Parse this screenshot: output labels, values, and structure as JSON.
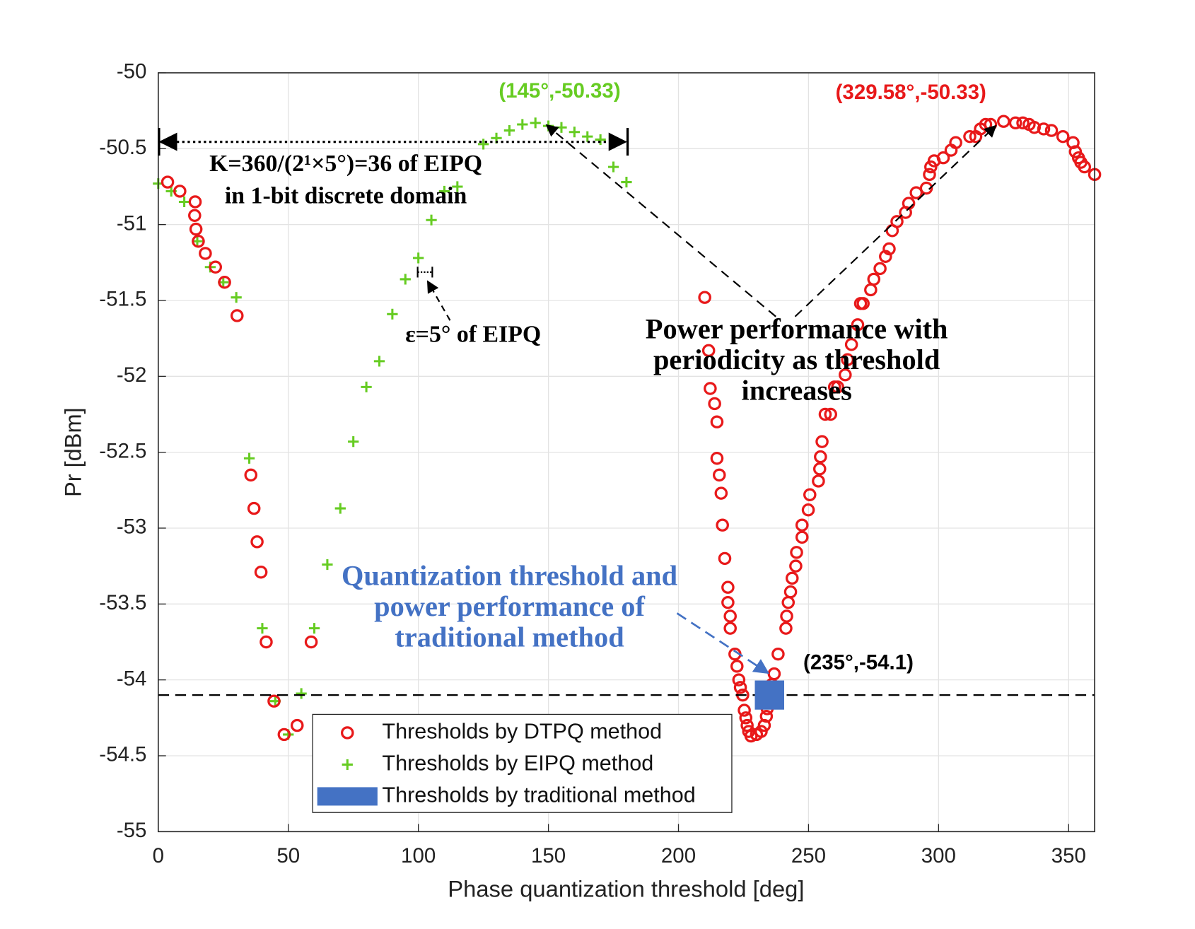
{
  "chart_data": {
    "type": "scatter",
    "xlabel": "Phase quantization threshold [deg]",
    "ylabel": "Pr [dBm]",
    "xlim": [
      0,
      360
    ],
    "ylim": [
      -55,
      -50
    ],
    "xticks": [
      0,
      50,
      100,
      150,
      200,
      250,
      300,
      350
    ],
    "yticks": [
      -55,
      -54.5,
      -54,
      -53.5,
      -53,
      -52.5,
      -52,
      -51.5,
      -51,
      -50.5,
      -50
    ],
    "grid": true,
    "legend": "lower center",
    "series": [
      {
        "name": "Thresholds by DTPQ method",
        "color": "#e8191a",
        "marker": "circle",
        "x": [
          3.6,
          8.3,
          14.2,
          14,
          14.5,
          15.4,
          18.1,
          22,
          25.5,
          30.3,
          35.6,
          36.8,
          38,
          39.5,
          41.5,
          44.5,
          48.4,
          53.4,
          58.8,
          210.1,
          211.6,
          212.2,
          213.9,
          214.8,
          214.8,
          215.7,
          216.4,
          216.9,
          217.8,
          219,
          219,
          219.9,
          219.9,
          221.7,
          222.5,
          223.2,
          223.8,
          224.7,
          225.3,
          225.9,
          226.4,
          227,
          227.9,
          230,
          231.8,
          233,
          233.8,
          234.1,
          235.9,
          236.8,
          238.3,
          241.3,
          241.6,
          242.2,
          243.1,
          243.7,
          245.1,
          245.4,
          247.5,
          247.5,
          249.9,
          250.5,
          253.8,
          254.3,
          254.6,
          255.2,
          256.4,
          258.5,
          260,
          261.2,
          264.1,
          265,
          266.5,
          268.9,
          270,
          271,
          273.9,
          275.1,
          277.5,
          279.6,
          281,
          282.2,
          284,
          287.3,
          288.5,
          291.4,
          295.3,
          296.5,
          297,
          298.3,
          301.8,
          304.8,
          306.6,
          312,
          314.3,
          316.1,
          318.1,
          320,
          325,
          329.58,
          332.4,
          334.8,
          336.8,
          340.4,
          343.4,
          347.8,
          351.7,
          352.6,
          353.8,
          354.7,
          356.1,
          360
        ],
        "values": [
          -50.72,
          -50.78,
          -50.85,
          -50.94,
          -51.03,
          -51.11,
          -51.19,
          -51.28,
          -51.38,
          -51.6,
          -52.65,
          -52.87,
          -53.09,
          -53.29,
          -53.75,
          -54.14,
          -54.36,
          -54.3,
          -53.75,
          -51.48,
          -51.83,
          -52.08,
          -52.18,
          -52.3,
          -52.54,
          -52.65,
          -52.77,
          -52.98,
          -53.2,
          -53.39,
          -53.49,
          -53.58,
          -53.66,
          -53.83,
          -53.91,
          -54,
          -54.05,
          -54.1,
          -54.2,
          -54.25,
          -54.3,
          -54.34,
          -54.37,
          -54.36,
          -54.34,
          -54.3,
          -54.24,
          -54.19,
          -54.03,
          -53.96,
          -53.83,
          -53.66,
          -53.58,
          -53.49,
          -53.42,
          -53.33,
          -53.25,
          -53.16,
          -53.06,
          -52.98,
          -52.88,
          -52.78,
          -52.69,
          -52.61,
          -52.53,
          -52.43,
          -52.25,
          -52.25,
          -52.07,
          -52.07,
          -51.99,
          -51.89,
          -51.79,
          -51.66,
          -51.52,
          -51.52,
          -51.43,
          -51.36,
          -51.29,
          -51.21,
          -51.16,
          -51.04,
          -50.98,
          -50.92,
          -50.86,
          -50.79,
          -50.76,
          -50.67,
          -50.62,
          -50.58,
          -50.56,
          -50.51,
          -50.46,
          -50.42,
          -50.42,
          -50.37,
          -50.34,
          -50.34,
          -50.32,
          -50.33,
          -50.33,
          -50.34,
          -50.36,
          -50.37,
          -50.38,
          -50.42,
          -50.46,
          -50.52,
          -50.56,
          -50.59,
          -50.62,
          -50.67
        ]
      },
      {
        "name": "Thresholds by EIPQ method",
        "color": "#66cc22",
        "marker": "plus",
        "x": [
          0,
          5,
          10,
          15,
          20,
          25,
          30,
          35,
          40,
          45,
          50,
          55,
          60,
          65,
          70,
          75,
          80,
          85,
          90,
          95,
          100,
          105,
          110,
          115,
          125,
          130,
          135,
          140,
          145,
          150,
          155,
          160,
          165,
          170,
          175,
          180
        ],
        "values": [
          -50.73,
          -50.78,
          -50.85,
          -51.11,
          -51.28,
          -51.38,
          -51.48,
          -52.54,
          -53.66,
          -54.14,
          -54.36,
          -54.09,
          -53.66,
          -53.24,
          -52.87,
          -52.43,
          -52.07,
          -51.9,
          -51.59,
          -51.36,
          -51.22,
          -50.97,
          -50.78,
          -50.75,
          -50.47,
          -50.43,
          -50.38,
          -50.34,
          -50.33,
          -50.35,
          -50.36,
          -50.39,
          -50.42,
          -50.44,
          -50.62,
          -50.72
        ]
      },
      {
        "name": "Thresholds by traditional method",
        "color": "#4472c4",
        "marker": "square",
        "x": [
          235
        ],
        "values": [
          -54.1
        ]
      }
    ],
    "annotations": [
      {
        "text": "(145°,-50.33)",
        "color": "#66cc22"
      },
      {
        "text": "(329.58°,-50.33)",
        "color": "#e8191a"
      },
      {
        "lines": [
          "K=360/(2¹×5°)=36 of EIPQ",
          "in 1-bit discrete domain"
        ],
        "color": "#000000"
      },
      {
        "text": "ε=5° of EIPQ",
        "color": "#000000"
      },
      {
        "lines": [
          "Power performance with",
          "periodicity as threshold",
          "increases"
        ],
        "color": "#000000"
      },
      {
        "lines": [
          "Quantization threshold and",
          "power performance of",
          "traditional method"
        ],
        "color": "#4472c4"
      },
      {
        "text": "(235°,-54.1)",
        "color": "#000000"
      }
    ]
  }
}
